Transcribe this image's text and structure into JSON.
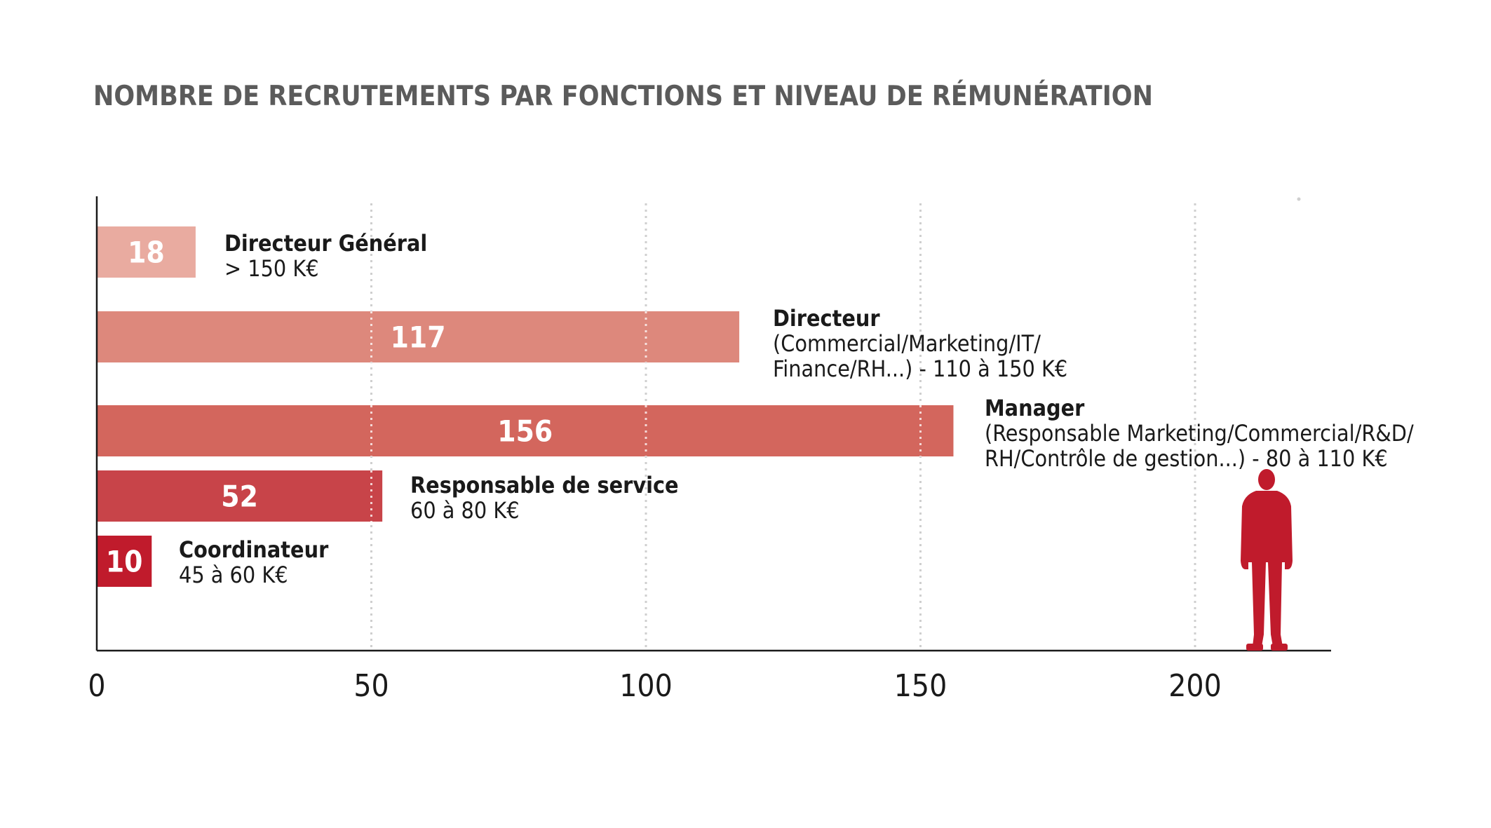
{
  "chart_data": {
    "type": "bar",
    "orientation": "horizontal",
    "title": "NOMBRE DE RECRUTEMENTS PAR FONCTIONS ET NIVEAU DE RÉMUNÉRATION",
    "xlim": [
      0,
      225
    ],
    "xticks": [
      0,
      50,
      100,
      150,
      200
    ],
    "grid": "vertical dotted",
    "bars": [
      {
        "value": 18,
        "value_label": "18",
        "label": "Directeur Général",
        "sub": [
          "> 150 K€"
        ],
        "color": "#e9aba0"
      },
      {
        "value": 117,
        "value_label": "117",
        "label": "Directeur",
        "sub": [
          "(Commercial/Marketing/IT/",
          "Finance/RH...) - 110 à 150 K€"
        ],
        "color": "#dd887c"
      },
      {
        "value": 156,
        "value_label": "156",
        "label": "Manager",
        "sub": [
          "(Responsable Marketing/Commercial/R&D/",
          "RH/Contrôle de gestion...) - 80 à 110 K€"
        ],
        "color": "#d3665d"
      },
      {
        "value": 52,
        "value_label": "52",
        "label": "Responsable de service",
        "sub": [
          "60 à 80 K€"
        ],
        "color": "#c84449"
      },
      {
        "value": 10,
        "value_label": "10",
        "label": "Coordinateur",
        "sub": [
          "45 à 60 K€"
        ],
        "color": "#c01b2c"
      }
    ],
    "figure_color": "#c01b2c",
    "axis_color": "#1a1a1a",
    "grid_color": "#cfcfcf"
  }
}
